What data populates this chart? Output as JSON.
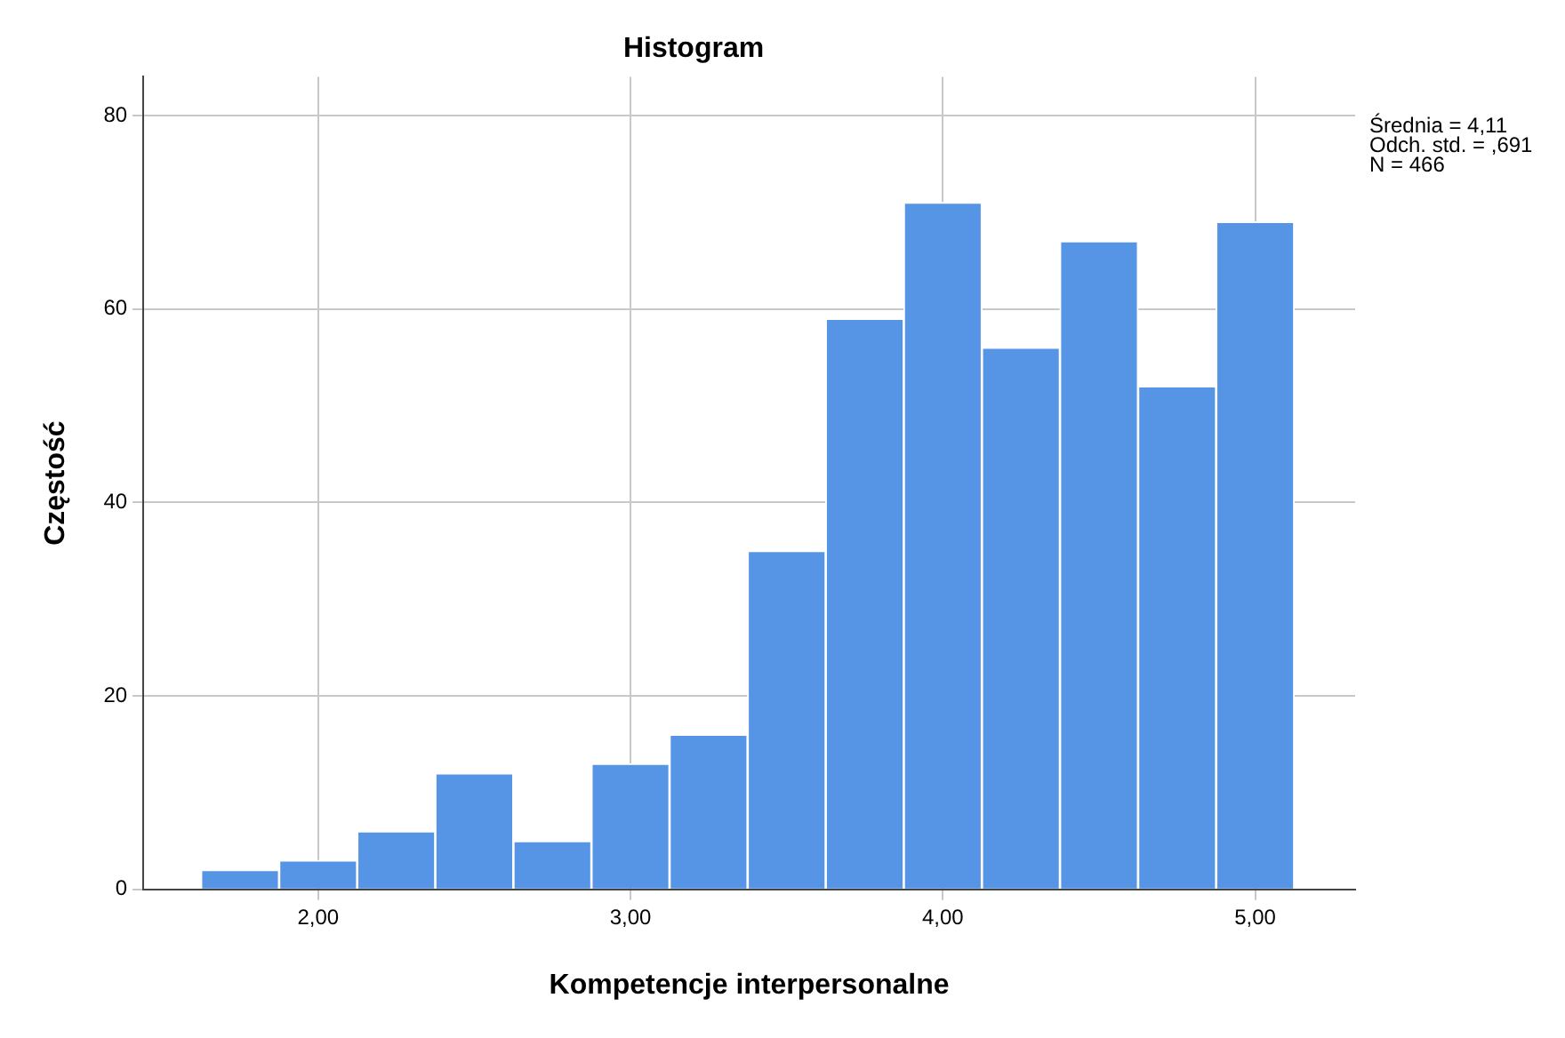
{
  "chart_data": {
    "type": "histogram",
    "title": "Histogram",
    "xlabel": "Kompetencje interpersonalne",
    "ylabel": "Częstość",
    "bins": [
      1.625,
      1.875,
      2.125,
      2.375,
      2.625,
      2.875,
      3.125,
      3.375,
      3.625,
      3.875,
      4.125,
      4.375,
      4.625,
      4.875,
      5.125
    ],
    "values": [
      2,
      3,
      6,
      12,
      5,
      13,
      16,
      35,
      59,
      71,
      56,
      67,
      52,
      69
    ],
    "color": "#5694e6",
    "xlim": [
      1.44,
      5.32
    ],
    "xticks": [
      {
        "value": 2,
        "label": "2,00"
      },
      {
        "value": 3,
        "label": "3,00"
      },
      {
        "value": 4,
        "label": "4,00"
      },
      {
        "value": 5,
        "label": "5,00"
      }
    ],
    "ylim": [
      0,
      84
    ],
    "yticks": [
      0,
      20,
      40,
      60,
      80
    ],
    "grid": true,
    "legend": false,
    "annotations": [
      "Średnia = 4,11",
      "Odch. std. = ,691",
      "N = 466"
    ]
  }
}
